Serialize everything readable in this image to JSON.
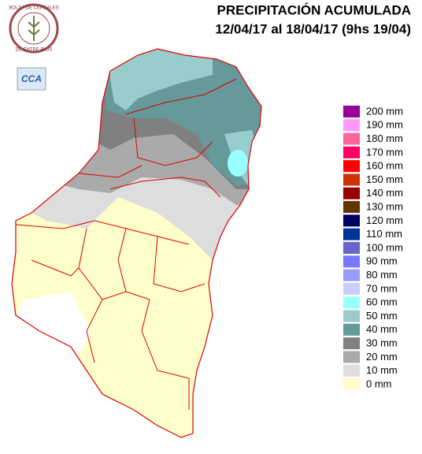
{
  "header": {
    "title": "PRECIPITACIÓN ACUMULADA",
    "subtitle": "12/04/17 al 18/04/17 (9hs 19/04)"
  },
  "logo": {
    "top": "BOLSA DE CEREALES",
    "bottom": "DE ENTRE RIOS",
    "badge": "CCA"
  },
  "legend": {
    "items": [
      {
        "label": "200 mm",
        "color": "#990099"
      },
      {
        "label": "190 mm",
        "color": "#ff99ff"
      },
      {
        "label": "180 mm",
        "color": "#ff6699"
      },
      {
        "label": "170 mm",
        "color": "#ff0066"
      },
      {
        "label": "160 mm",
        "color": "#ff0000"
      },
      {
        "label": "150 mm",
        "color": "#cc3300"
      },
      {
        "label": "140 mm",
        "color": "#990000"
      },
      {
        "label": "130 mm",
        "color": "#663300"
      },
      {
        "label": "120 mm",
        "color": "#000066"
      },
      {
        "label": "110 mm",
        "color": "#003399"
      },
      {
        "label": "100 mm",
        "color": "#6666cc"
      },
      {
        "label": "90 mm",
        "color": "#7777ff"
      },
      {
        "label": "80 mm",
        "color": "#9999ff"
      },
      {
        "label": "70 mm",
        "color": "#ccccff"
      },
      {
        "label": "60 mm",
        "color": "#99ffff"
      },
      {
        "label": "50 mm",
        "color": "#99cccc"
      },
      {
        "label": "40 mm",
        "color": "#669999"
      },
      {
        "label": "30 mm",
        "color": "#808080"
      },
      {
        "label": "20 mm",
        "color": "#aaaaaa"
      },
      {
        "label": "10 mm",
        "color": "#dddddd"
      },
      {
        "label": "0 mm",
        "color": "#ffffcc"
      }
    ]
  }
}
